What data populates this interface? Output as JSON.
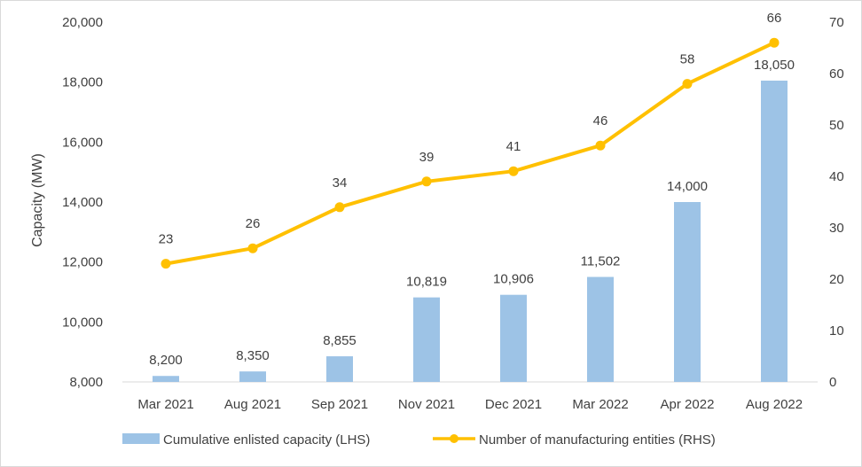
{
  "chart_data": {
    "type": "bar+line",
    "categories": [
      "Mar 2021",
      "Aug 2021",
      "Sep 2021",
      "Nov 2021",
      "Dec 2021",
      "Mar 2022",
      "Apr 2022",
      "Aug 2022"
    ],
    "series": [
      {
        "name": "Cumulative enlisted capacity (LHS)",
        "type": "bar",
        "axis": "left",
        "color": "#9dc3e6",
        "values": [
          8200,
          8350,
          8855,
          10819,
          10906,
          11502,
          14000,
          18050
        ],
        "labels": [
          "8,200",
          "8,350",
          "8,855",
          "10,819",
          "10,906",
          "11,502",
          "14,000",
          "18,050"
        ]
      },
      {
        "name": "Number of manufacturing entities (RHS)",
        "type": "line",
        "axis": "right",
        "color": "#ffc000",
        "values": [
          23,
          26,
          34,
          39,
          41,
          46,
          58,
          66
        ],
        "labels": [
          "23",
          "26",
          "34",
          "39",
          "41",
          "46",
          "58",
          "66"
        ]
      }
    ],
    "ylabel": "Capacity (MW)",
    "ylim": [
      8000,
      20000
    ],
    "yticks": [
      8000,
      10000,
      12000,
      14000,
      16000,
      18000,
      20000
    ],
    "ytick_labels": [
      "8,000",
      "10,000",
      "12,000",
      "14,000",
      "16,000",
      "18,000",
      "20,000"
    ],
    "y2lim": [
      0,
      70
    ],
    "y2ticks": [
      0,
      10,
      20,
      30,
      40,
      50,
      60,
      70
    ],
    "y2tick_labels": [
      "0",
      "10",
      "20",
      "30",
      "40",
      "50",
      "60",
      "70"
    ],
    "legend_position": "bottom",
    "grid": false
  }
}
